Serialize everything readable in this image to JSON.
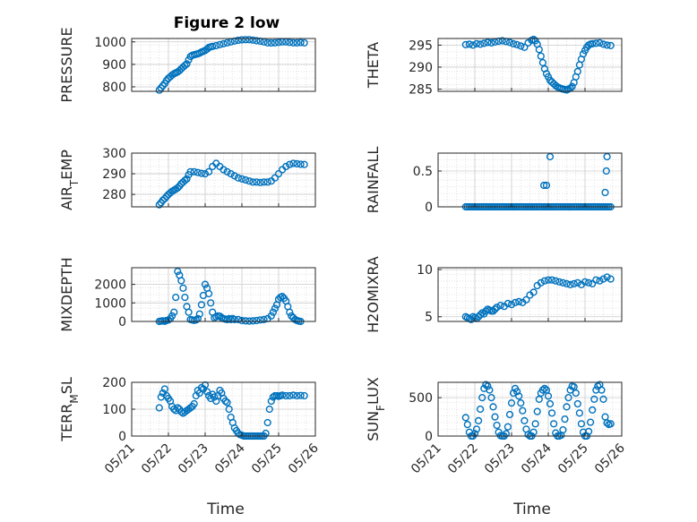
{
  "figure": {
    "title": "Figure 2 low",
    "xlabel": "Time"
  },
  "colors": {
    "marker": "#0072BD",
    "grid": "#d9d9d9",
    "axis": "#262626"
  },
  "chart_data": [
    {
      "type": "scatter",
      "id": "pressure",
      "ylabel": "PRESSURE",
      "title": "Figure 2 low",
      "xlim": [
        0,
        5
      ],
      "ylim": [
        780,
        1015
      ],
      "yticks": [
        800,
        900,
        1000
      ],
      "x": [
        0.75,
        0.8,
        0.85,
        0.9,
        0.95,
        1.0,
        1.05,
        1.1,
        1.15,
        1.2,
        1.25,
        1.3,
        1.35,
        1.4,
        1.45,
        1.5,
        1.55,
        1.6,
        1.65,
        1.7,
        1.75,
        1.8,
        1.85,
        1.9,
        1.95,
        2.0,
        2.05,
        2.1,
        2.15,
        2.2,
        2.3,
        2.4,
        2.5,
        2.6,
        2.7,
        2.8,
        2.9,
        3.0,
        3.1,
        3.2,
        3.3,
        3.4,
        3.5,
        3.6,
        3.7,
        3.8,
        3.9,
        4.0,
        4.1,
        4.2,
        4.3,
        4.4,
        4.5,
        4.6,
        4.7
      ],
      "y": [
        785,
        795,
        805,
        815,
        828,
        838,
        845,
        852,
        858,
        862,
        866,
        872,
        880,
        888,
        895,
        902,
        920,
        935,
        940,
        943,
        945,
        947,
        950,
        955,
        958,
        962,
        968,
        975,
        978,
        980,
        983,
        988,
        992,
        996,
        1000,
        1004,
        1007,
        1009,
        1010,
        1010,
        1008,
        1005,
        1003,
        1000,
        996,
        995,
        996,
        998,
        1000,
        1000,
        998,
        996,
        996,
        997,
        996
      ]
    },
    {
      "type": "scatter",
      "id": "theta",
      "ylabel": "THETA",
      "xlim": [
        0,
        5
      ],
      "ylim": [
        284.5,
        296.5
      ],
      "yticks": [
        285,
        290,
        295
      ],
      "x": [
        0.75,
        0.85,
        0.95,
        1.05,
        1.15,
        1.25,
        1.35,
        1.45,
        1.55,
        1.65,
        1.75,
        1.85,
        1.95,
        2.05,
        2.15,
        2.25,
        2.35,
        2.45,
        2.55,
        2.6,
        2.65,
        2.7,
        2.75,
        2.8,
        2.85,
        2.9,
        2.95,
        3.0,
        3.05,
        3.1,
        3.15,
        3.2,
        3.25,
        3.3,
        3.35,
        3.4,
        3.45,
        3.5,
        3.55,
        3.6,
        3.65,
        3.7,
        3.75,
        3.8,
        3.85,
        3.9,
        3.95,
        4.0,
        4.05,
        4.1,
        4.15,
        4.2,
        4.3,
        4.4,
        4.5,
        4.6,
        4.7
      ],
      "y": [
        295.1,
        295.2,
        295.0,
        295.3,
        295.2,
        295.4,
        295.6,
        295.5,
        295.7,
        295.9,
        296.0,
        295.8,
        295.6,
        295.3,
        295.1,
        294.8,
        294.5,
        295.5,
        296.1,
        296.3,
        296.0,
        295.2,
        294.0,
        292.5,
        291.0,
        289.6,
        288.5,
        287.8,
        287.0,
        286.6,
        286.2,
        285.8,
        285.5,
        285.3,
        285.1,
        285.0,
        284.9,
        284.8,
        285.0,
        285.2,
        285.6,
        286.5,
        287.8,
        289.0,
        290.5,
        291.8,
        293.0,
        293.8,
        294.5,
        295.0,
        295.2,
        295.3,
        295.4,
        295.5,
        295.2,
        295.0,
        294.9
      ]
    },
    {
      "type": "scatter",
      "id": "air_temp",
      "ylabel": "AIR",
      "ylabel_sub": "T",
      "ylabel_rest": "EMP",
      "xlim": [
        0,
        5
      ],
      "ylim": [
        274,
        300
      ],
      "yticks": [
        280,
        290,
        300
      ],
      "x": [
        0.75,
        0.8,
        0.85,
        0.9,
        0.95,
        1.0,
        1.05,
        1.1,
        1.15,
        1.2,
        1.25,
        1.3,
        1.35,
        1.4,
        1.45,
        1.5,
        1.55,
        1.6,
        1.7,
        1.8,
        1.9,
        2.0,
        2.1,
        2.2,
        2.3,
        2.4,
        2.5,
        2.6,
        2.7,
        2.8,
        2.9,
        3.0,
        3.1,
        3.2,
        3.3,
        3.4,
        3.5,
        3.6,
        3.7,
        3.8,
        3.9,
        4.0,
        4.1,
        4.2,
        4.3,
        4.4,
        4.5,
        4.6,
        4.7
      ],
      "y": [
        275.0,
        276.0,
        277.2,
        278.0,
        279.0,
        280.0,
        280.8,
        281.5,
        282.0,
        282.6,
        283.2,
        284.0,
        285.2,
        286.0,
        286.8,
        287.5,
        289.5,
        291.0,
        291.0,
        290.6,
        290.2,
        290.0,
        291.0,
        293.5,
        295.0,
        293.5,
        292.0,
        291.0,
        290.0,
        289.0,
        288.0,
        287.5,
        287.0,
        286.5,
        286.0,
        286.0,
        285.8,
        286.0,
        286.0,
        286.5,
        288.0,
        290.0,
        292.0,
        293.5,
        294.5,
        295.0,
        294.8,
        294.6,
        294.5
      ]
    },
    {
      "type": "scatter",
      "id": "rainfall",
      "ylabel": "RAINFALL",
      "xlim": [
        0,
        5
      ],
      "ylim": [
        0,
        0.75
      ],
      "yticks": [
        0,
        0.5
      ],
      "x": [
        0.75,
        0.8,
        0.85,
        0.9,
        0.95,
        1.0,
        1.05,
        1.1,
        1.15,
        1.2,
        1.25,
        1.3,
        1.35,
        1.4,
        1.45,
        1.5,
        1.55,
        1.6,
        1.65,
        1.7,
        1.75,
        1.8,
        1.85,
        1.9,
        1.95,
        2.0,
        2.05,
        2.1,
        2.15,
        2.2,
        2.25,
        2.3,
        2.35,
        2.4,
        2.45,
        2.5,
        2.55,
        2.6,
        2.65,
        2.7,
        2.75,
        2.8,
        2.85,
        2.9,
        2.95,
        3.0,
        3.05,
        3.1,
        3.15,
        3.2,
        3.25,
        3.3,
        3.35,
        3.4,
        3.45,
        3.5,
        3.55,
        3.6,
        3.65,
        3.7,
        3.75,
        3.8,
        3.85,
        3.9,
        3.95,
        4.0,
        4.05,
        4.1,
        4.15,
        4.2,
        4.25,
        4.3,
        4.35,
        4.4,
        4.45,
        4.5,
        4.55,
        4.6,
        4.65,
        4.7,
        2.88,
        2.95,
        3.05,
        4.55,
        4.58,
        4.6
      ],
      "y": [
        0,
        0,
        0,
        0,
        0,
        0,
        0,
        0,
        0,
        0,
        0,
        0,
        0,
        0,
        0,
        0,
        0,
        0,
        0,
        0,
        0,
        0,
        0,
        0,
        0,
        0,
        0,
        0,
        0,
        0,
        0,
        0,
        0,
        0,
        0,
        0,
        0,
        0,
        0,
        0,
        0,
        0,
        0,
        0,
        0,
        0,
        0,
        0,
        0,
        0,
        0,
        0,
        0,
        0,
        0,
        0,
        0,
        0,
        0,
        0,
        0,
        0,
        0,
        0,
        0,
        0,
        0,
        0,
        0,
        0,
        0,
        0,
        0,
        0,
        0,
        0,
        0,
        0,
        0,
        0,
        0.3,
        0.3,
        0.7,
        0.2,
        0.5,
        0.7
      ]
    },
    {
      "type": "scatter",
      "id": "mixdepth",
      "ylabel": "MIXDEPTH",
      "xlim": [
        0,
        5
      ],
      "ylim": [
        0,
        2900
      ],
      "yticks": [
        0,
        1000,
        2000
      ],
      "x": [
        0.75,
        0.8,
        0.85,
        0.9,
        0.95,
        1.0,
        1.05,
        1.1,
        1.15,
        1.2,
        1.25,
        1.3,
        1.35,
        1.4,
        1.45,
        1.5,
        1.55,
        1.6,
        1.65,
        1.7,
        1.75,
        1.8,
        1.85,
        1.9,
        1.95,
        2.0,
        2.05,
        2.1,
        2.15,
        2.2,
        2.25,
        2.3,
        2.35,
        2.4,
        2.45,
        2.5,
        2.55,
        2.6,
        2.65,
        2.7,
        2.75,
        2.8,
        2.9,
        3.0,
        3.1,
        3.2,
        3.3,
        3.4,
        3.5,
        3.6,
        3.7,
        3.8,
        3.85,
        3.9,
        3.95,
        4.0,
        4.05,
        4.1,
        4.15,
        4.2,
        4.25,
        4.3,
        4.35,
        4.4,
        4.45,
        4.5,
        4.55,
        4.6
      ],
      "y": [
        0,
        20,
        30,
        10,
        50,
        80,
        150,
        300,
        500,
        1300,
        2700,
        2500,
        2200,
        1800,
        1300,
        800,
        500,
        100,
        80,
        60,
        80,
        150,
        400,
        900,
        1400,
        2000,
        1800,
        1500,
        1000,
        500,
        200,
        250,
        300,
        280,
        200,
        150,
        120,
        100,
        150,
        100,
        150,
        100,
        100,
        50,
        30,
        20,
        30,
        50,
        80,
        100,
        150,
        300,
        500,
        700,
        900,
        1200,
        1300,
        1350,
        1250,
        1100,
        800,
        500,
        300,
        200,
        100,
        50,
        20,
        0
      ]
    },
    {
      "type": "scatter",
      "id": "h2omixra",
      "ylabel": "H2OMIXRA",
      "xlim": [
        0,
        5
      ],
      "ylim": [
        4.5,
        10.2
      ],
      "yticks": [
        5,
        10
      ],
      "x": [
        0.75,
        0.8,
        0.85,
        0.9,
        0.95,
        1.0,
        1.05,
        1.1,
        1.15,
        1.2,
        1.25,
        1.3,
        1.35,
        1.4,
        1.45,
        1.5,
        1.55,
        1.6,
        1.7,
        1.8,
        1.9,
        2.0,
        2.1,
        2.2,
        2.3,
        2.4,
        2.5,
        2.6,
        2.7,
        2.8,
        2.9,
        3.0,
        3.1,
        3.2,
        3.3,
        3.4,
        3.5,
        3.6,
        3.7,
        3.8,
        3.9,
        4.0,
        4.1,
        4.2,
        4.3,
        4.4,
        4.5,
        4.6,
        4.7
      ],
      "y": [
        5.0,
        4.9,
        4.8,
        4.7,
        5.0,
        4.9,
        4.8,
        5.0,
        5.2,
        5.4,
        5.3,
        5.6,
        5.8,
        5.7,
        5.6,
        5.6,
        5.8,
        6.0,
        6.2,
        6.1,
        6.4,
        6.3,
        6.5,
        6.6,
        6.5,
        6.8,
        7.3,
        7.6,
        8.3,
        8.6,
        8.8,
        8.9,
        8.9,
        8.8,
        8.7,
        8.6,
        8.5,
        8.4,
        8.5,
        8.6,
        8.4,
        8.7,
        8.6,
        8.5,
        8.9,
        8.8,
        9.0,
        9.2,
        9.0
      ]
    },
    {
      "type": "scatter",
      "id": "terrmsl",
      "ylabel": "TERR",
      "ylabel_sub": "M",
      "ylabel_rest": "SL",
      "xlim": [
        0,
        5
      ],
      "ylim": [
        0,
        200
      ],
      "yticks": [
        0,
        100,
        200
      ],
      "x": [
        0.75,
        0.8,
        0.85,
        0.9,
        0.95,
        1.0,
        1.05,
        1.1,
        1.15,
        1.2,
        1.25,
        1.3,
        1.35,
        1.4,
        1.45,
        1.5,
        1.55,
        1.6,
        1.65,
        1.7,
        1.75,
        1.8,
        1.85,
        1.9,
        1.95,
        2.0,
        2.05,
        2.1,
        2.15,
        2.2,
        2.25,
        2.3,
        2.35,
        2.4,
        2.45,
        2.5,
        2.55,
        2.6,
        2.65,
        2.7,
        2.75,
        2.8,
        2.85,
        2.9,
        2.95,
        3.0,
        3.05,
        3.1,
        3.15,
        3.2,
        3.25,
        3.3,
        3.35,
        3.4,
        3.45,
        3.5,
        3.55,
        3.6,
        3.65,
        3.7,
        3.75,
        3.8,
        3.85,
        3.9,
        3.95,
        4.0,
        4.05,
        4.1,
        4.2,
        4.3,
        4.4,
        4.5,
        4.6,
        4.7
      ],
      "y": [
        105,
        145,
        160,
        175,
        150,
        140,
        130,
        110,
        100,
        95,
        105,
        100,
        90,
        85,
        90,
        95,
        100,
        105,
        110,
        120,
        150,
        170,
        160,
        180,
        175,
        190,
        165,
        150,
        140,
        155,
        145,
        130,
        150,
        170,
        160,
        140,
        130,
        125,
        100,
        70,
        50,
        30,
        20,
        10,
        5,
        3,
        0,
        0,
        0,
        0,
        0,
        0,
        0,
        0,
        0,
        0,
        0,
        0,
        10,
        50,
        100,
        130,
        145,
        150,
        150,
        148,
        150,
        152,
        150,
        150,
        152,
        150,
        151,
        150
      ]
    },
    {
      "type": "scatter",
      "id": "sunflux",
      "ylabel": "SUN",
      "ylabel_sub": "F",
      "ylabel_rest": "LUX",
      "xlim": [
        0,
        5
      ],
      "ylim": [
        0,
        700
      ],
      "yticks": [
        0,
        500
      ],
      "x": [
        0.75,
        0.8,
        0.85,
        0.9,
        0.95,
        1.0,
        1.05,
        1.1,
        1.15,
        1.2,
        1.25,
        1.3,
        1.35,
        1.4,
        1.45,
        1.5,
        1.55,
        1.6,
        1.65,
        1.7,
        1.75,
        1.8,
        1.85,
        1.9,
        1.95,
        2.0,
        2.05,
        2.1,
        2.15,
        2.2,
        2.25,
        2.3,
        2.35,
        2.4,
        2.45,
        2.5,
        2.55,
        2.6,
        2.65,
        2.7,
        2.75,
        2.8,
        2.85,
        2.9,
        2.95,
        3.0,
        3.05,
        3.1,
        3.15,
        3.2,
        3.25,
        3.3,
        3.35,
        3.4,
        3.45,
        3.5,
        3.55,
        3.6,
        3.65,
        3.7,
        3.75,
        3.8,
        3.85,
        3.9,
        3.95,
        4.0,
        4.05,
        4.1,
        4.15,
        4.2,
        4.25,
        4.3,
        4.35,
        4.4,
        4.45,
        4.5,
        4.55,
        4.6,
        4.65,
        4.7
      ],
      "y": [
        240,
        150,
        50,
        0,
        0,
        30,
        90,
        200,
        350,
        500,
        620,
        670,
        650,
        600,
        500,
        380,
        250,
        140,
        50,
        5,
        0,
        0,
        30,
        120,
        280,
        430,
        560,
        620,
        580,
        520,
        430,
        330,
        200,
        90,
        20,
        0,
        0,
        50,
        160,
        320,
        480,
        560,
        600,
        620,
        600,
        520,
        420,
        300,
        160,
        40,
        0,
        0,
        10,
        80,
        220,
        380,
        500,
        600,
        650,
        640,
        560,
        420,
        300,
        160,
        50,
        0,
        0,
        60,
        180,
        340,
        480,
        600,
        650,
        670,
        600,
        480,
        250,
        170,
        150,
        160
      ]
    }
  ]
}
